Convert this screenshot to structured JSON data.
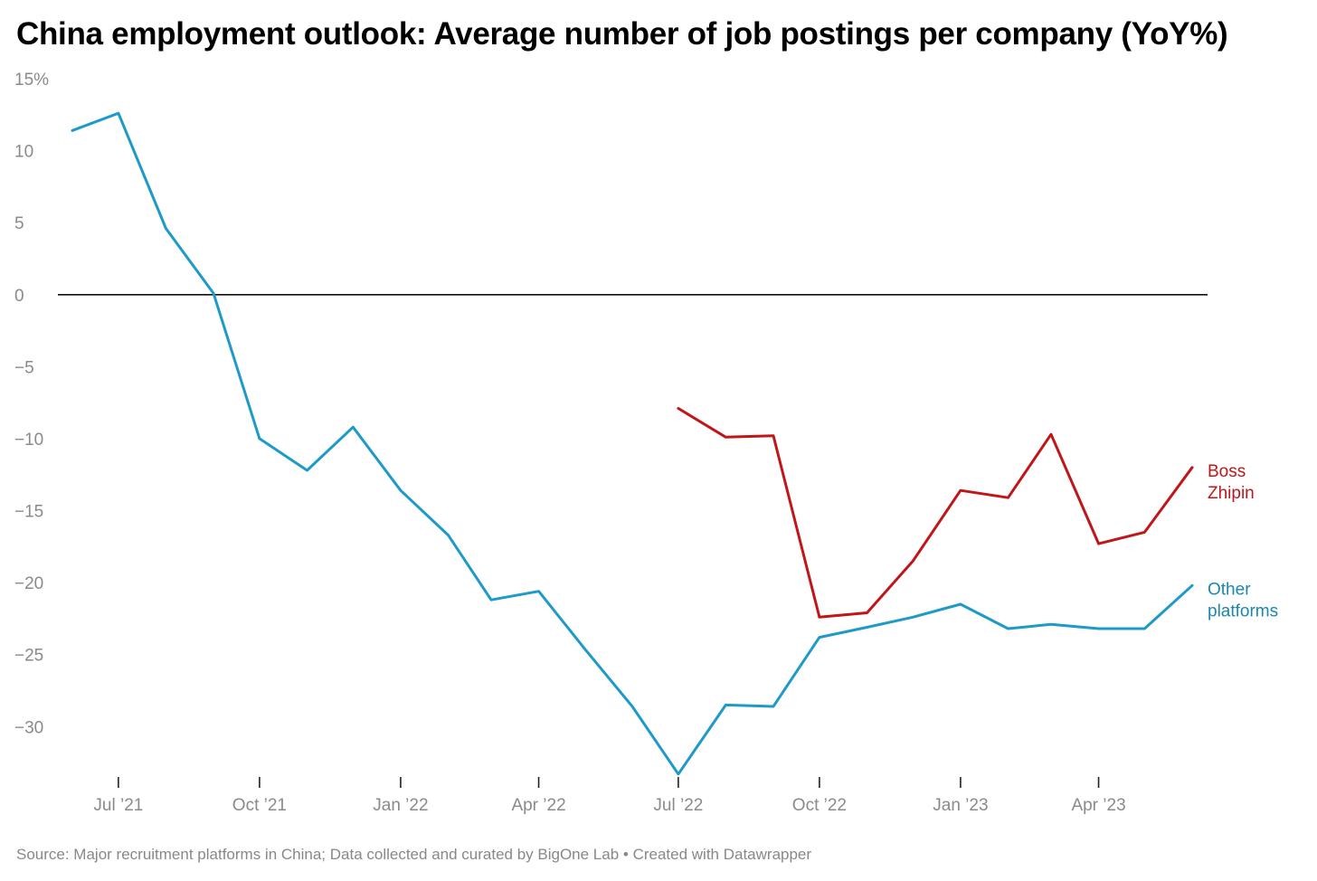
{
  "chart_data": {
    "type": "line",
    "title": "China employment outlook: Average number of job postings per company (YoY%)",
    "source": "Source: Major recruitment platforms in China; Data collected and curated by BigOne Lab • Created with Datawrapper",
    "ylim": [
      -33.5,
      15
    ],
    "y_ticks": [
      {
        "value": 15,
        "label": "15%"
      },
      {
        "value": 10,
        "label": "10"
      },
      {
        "value": 5,
        "label": "5"
      },
      {
        "value": 0,
        "label": "0"
      },
      {
        "value": -5,
        "label": "−5"
      },
      {
        "value": -10,
        "label": "−10"
      },
      {
        "value": -15,
        "label": "−15"
      },
      {
        "value": -20,
        "label": "−20"
      },
      {
        "value": -25,
        "label": "−25"
      },
      {
        "value": -30,
        "label": "−30"
      }
    ],
    "x_ticks": [
      {
        "date": "2021-07-01",
        "label": "Jul ’21"
      },
      {
        "date": "2021-10-01",
        "label": "Oct ’21"
      },
      {
        "date": "2022-01-01",
        "label": "Jan ’22"
      },
      {
        "date": "2022-04-01",
        "label": "Apr ’22"
      },
      {
        "date": "2022-07-01",
        "label": "Jul ’22"
      },
      {
        "date": "2022-10-01",
        "label": "Oct ’22"
      },
      {
        "date": "2023-01-01",
        "label": "Jan ’23"
      },
      {
        "date": "2023-04-01",
        "label": "Apr ’23"
      }
    ],
    "xlim": [
      "2021-06-01",
      "2023-06-01"
    ],
    "zero_line": true,
    "grid": false,
    "series": [
      {
        "name": "Other platforms",
        "label_lines": [
          "Other",
          "platforms"
        ],
        "color": "#1e9ac8",
        "label_color": "#1a87b0",
        "points": [
          {
            "x": "2021-06-01",
            "y": 11.4
          },
          {
            "x": "2021-07-01",
            "y": 12.6
          },
          {
            "x": "2021-08-01",
            "y": 4.6
          },
          {
            "x": "2021-09-01",
            "y": 0.1
          },
          {
            "x": "2021-10-01",
            "y": -10.0
          },
          {
            "x": "2021-11-01",
            "y": -12.2
          },
          {
            "x": "2021-12-01",
            "y": -9.2
          },
          {
            "x": "2022-01-01",
            "y": -13.6
          },
          {
            "x": "2022-02-01",
            "y": -16.7
          },
          {
            "x": "2022-03-01",
            "y": -21.2
          },
          {
            "x": "2022-04-01",
            "y": -20.6
          },
          {
            "x": "2022-05-01",
            "y": -24.6
          },
          {
            "x": "2022-06-01",
            "y": -28.6
          },
          {
            "x": "2022-07-01",
            "y": -33.3
          },
          {
            "x": "2022-08-01",
            "y": -28.5
          },
          {
            "x": "2022-09-01",
            "y": -28.6
          },
          {
            "x": "2022-10-01",
            "y": -23.8
          },
          {
            "x": "2022-11-01",
            "y": -23.1
          },
          {
            "x": "2022-12-01",
            "y": -22.4
          },
          {
            "x": "2023-01-01",
            "y": -21.5
          },
          {
            "x": "2023-02-01",
            "y": -23.2
          },
          {
            "x": "2023-03-01",
            "y": -22.9
          },
          {
            "x": "2023-04-01",
            "y": -23.2
          },
          {
            "x": "2023-05-01",
            "y": -23.2
          },
          {
            "x": "2023-06-01",
            "y": -20.2
          }
        ]
      },
      {
        "name": "Boss Zhipin",
        "label_lines": [
          "Boss",
          "Zhipin"
        ],
        "color": "#c0161a",
        "label_color": "#c0161a",
        "points": [
          {
            "x": "2022-07-01",
            "y": -7.9
          },
          {
            "x": "2022-08-01",
            "y": -9.9
          },
          {
            "x": "2022-09-01",
            "y": -9.8
          },
          {
            "x": "2022-10-01",
            "y": -22.4
          },
          {
            "x": "2022-11-01",
            "y": -22.1
          },
          {
            "x": "2022-12-01",
            "y": -18.5
          },
          {
            "x": "2023-01-01",
            "y": -13.6
          },
          {
            "x": "2023-02-01",
            "y": -14.1
          },
          {
            "x": "2023-03-01",
            "y": -9.7
          },
          {
            "x": "2023-04-01",
            "y": -17.3
          },
          {
            "x": "2023-05-01",
            "y": -16.5
          },
          {
            "x": "2023-06-01",
            "y": -12.0
          }
        ]
      }
    ]
  }
}
